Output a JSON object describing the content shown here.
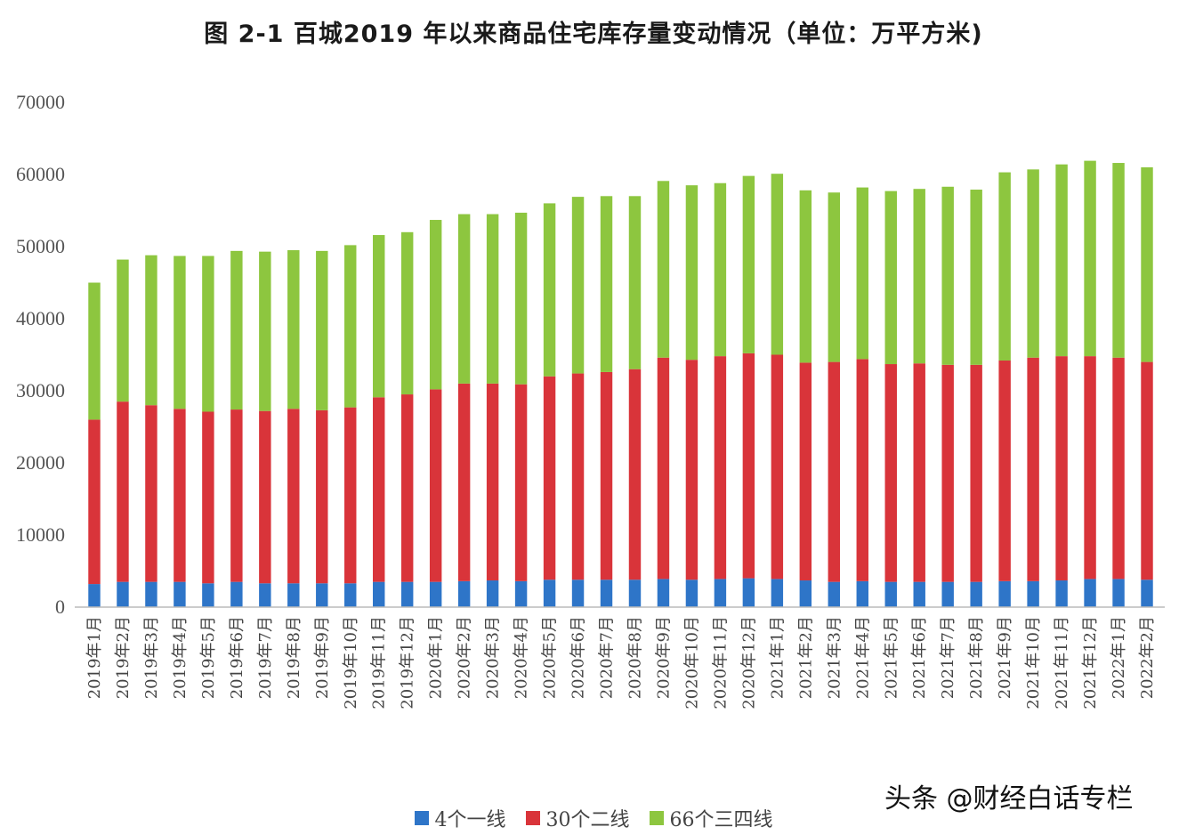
{
  "title": "图 2-1 百城2019 年以来商品住宅库存量变动情况（单位：万平方米)",
  "watermark": "头条 @财经白话专栏",
  "colors": {
    "tier1": "#2e75c8",
    "tier2": "#d9343a",
    "tier3": "#8dc63f"
  },
  "chart_data": {
    "type": "bar",
    "stacked": true,
    "title": "图 2-1 百城2019 年以来商品住宅库存量变动情况（单位：万平方米)",
    "ylim": [
      0,
      70000
    ],
    "yticks": [
      0,
      10000,
      20000,
      30000,
      40000,
      50000,
      60000,
      70000
    ],
    "grid": false,
    "legend_position": "bottom",
    "categories": [
      "2019年1月",
      "2019年2月",
      "2019年3月",
      "2019年4月",
      "2019年5月",
      "2019年6月",
      "2019年7月",
      "2019年8月",
      "2019年9月",
      "2019年10月",
      "2019年11月",
      "2019年12月",
      "2020年1月",
      "2020年2月",
      "2020年3月",
      "2020年4月",
      "2020年5月",
      "2020年6月",
      "2020年7月",
      "2020年8月",
      "2020年9月",
      "2020年10月",
      "2020年11月",
      "2020年12月",
      "2021年1月",
      "2021年2月",
      "2021年3月",
      "2021年4月",
      "2021年5月",
      "2021年6月",
      "2021年7月",
      "2021年8月",
      "2021年9月",
      "2021年10月",
      "2021年11月",
      "2021年12月",
      "2022年1月",
      "2022年2月"
    ],
    "series": [
      {
        "name": "4个一线",
        "color": "#2e75c8",
        "values": [
          3200,
          3500,
          3500,
          3500,
          3300,
          3500,
          3300,
          3300,
          3300,
          3300,
          3500,
          3500,
          3500,
          3600,
          3700,
          3600,
          3800,
          3800,
          3800,
          3800,
          3900,
          3800,
          3900,
          4000,
          3900,
          3700,
          3500,
          3600,
          3500,
          3500,
          3500,
          3500,
          3600,
          3600,
          3700,
          3900,
          3900,
          3800
        ]
      },
      {
        "name": "30个二线",
        "color": "#d9343a",
        "values": [
          22800,
          25000,
          24500,
          24000,
          23800,
          23900,
          23900,
          24200,
          24000,
          24400,
          25600,
          26000,
          26700,
          27400,
          27300,
          27300,
          28200,
          28600,
          28800,
          29200,
          30700,
          30500,
          30900,
          31200,
          31100,
          30200,
          30500,
          30800,
          30200,
          30300,
          30100,
          30100,
          30600,
          31000,
          31100,
          30900,
          30700,
          30200
        ]
      },
      {
        "name": "66个三四线",
        "color": "#8dc63f",
        "values": [
          19000,
          19700,
          20800,
          21200,
          21600,
          22000,
          22100,
          22000,
          22100,
          22500,
          22500,
          22500,
          23500,
          23500,
          23500,
          23800,
          24000,
          24500,
          24400,
          24000,
          24500,
          24200,
          24000,
          24600,
          25100,
          23900,
          23500,
          23800,
          24000,
          24200,
          24700,
          24300,
          26100,
          26100,
          26600,
          27100,
          27000,
          27000
        ]
      }
    ]
  }
}
